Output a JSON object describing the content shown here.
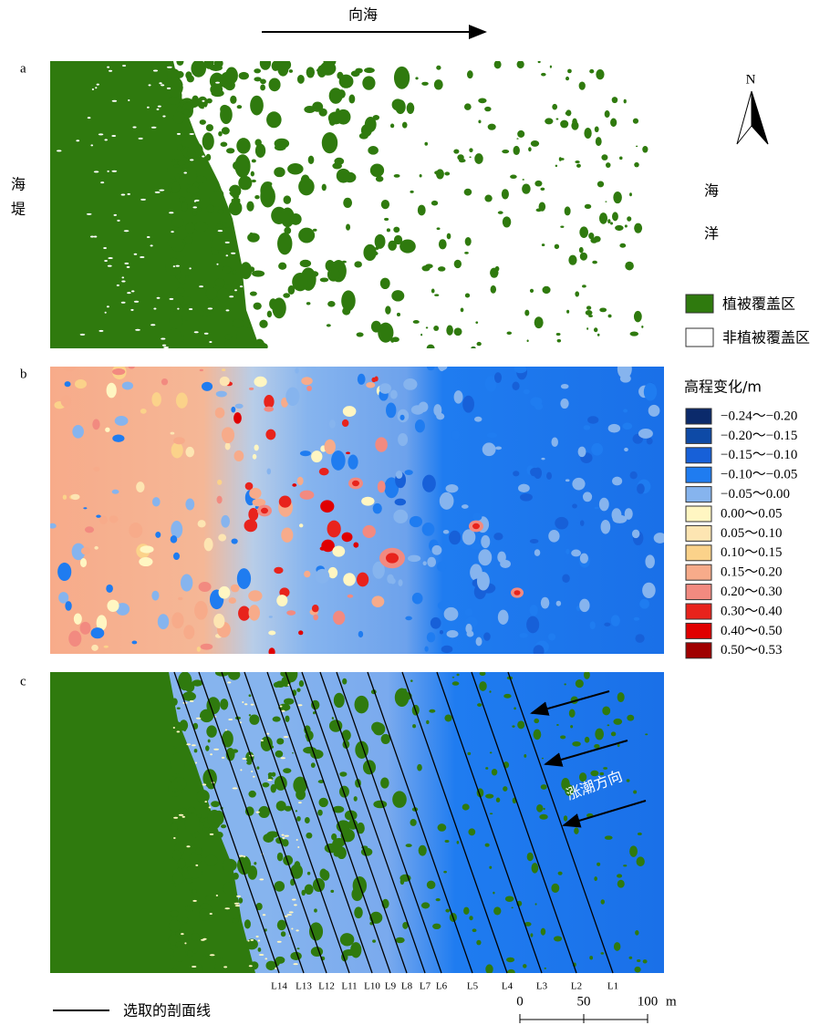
{
  "direction_label": "向海",
  "panel_labels": [
    "a",
    "b",
    "c"
  ],
  "compass": "N",
  "left_label": [
    "海",
    "堤"
  ],
  "right_label": [
    "海",
    "洋"
  ],
  "legend_a": [
    {
      "label": "植被覆盖区",
      "color": "#2f7a0e"
    },
    {
      "label": "非植被覆盖区",
      "color": "#ffffff"
    }
  ],
  "legend_b": {
    "title": "高程变化/m",
    "items": [
      {
        "label": "−0.24～−0.20",
        "color": "#0b2a6b"
      },
      {
        "label": "−0.20～−0.15",
        "color": "#0e4aa6"
      },
      {
        "label": "−0.15～−0.10",
        "color": "#1760d8"
      },
      {
        "label": "−0.10～−0.05",
        "color": "#1f7cf0"
      },
      {
        "label": "−0.05～0.00",
        "color": "#86b4ee"
      },
      {
        "label": "0.00～0.05",
        "color": "#fff6c2"
      },
      {
        "label": "0.05～0.10",
        "color": "#fde5b2"
      },
      {
        "label": "0.10～0.15",
        "color": "#fbd28a"
      },
      {
        "label": "0.15～0.20",
        "color": "#f7ab8a"
      },
      {
        "label": "0.20～0.30",
        "color": "#f28a80"
      },
      {
        "label": "0.30～0.40",
        "color": "#e8231c"
      },
      {
        "label": "0.40～0.50",
        "color": "#e00000"
      },
      {
        "label": "0.50～0.53",
        "color": "#a00000"
      }
    ]
  },
  "profiles": [
    "L14",
    "L13",
    "L12",
    "L11",
    "L10",
    "L9",
    "L8",
    "L7",
    "L6",
    "L5",
    "L4",
    "L3",
    "L2",
    "L1"
  ],
  "tide_label": "涨潮方向",
  "line_legend": "选取的剖面线",
  "scale_bar": {
    "ticks": [
      0,
      50,
      100
    ],
    "unit": "m"
  }
}
